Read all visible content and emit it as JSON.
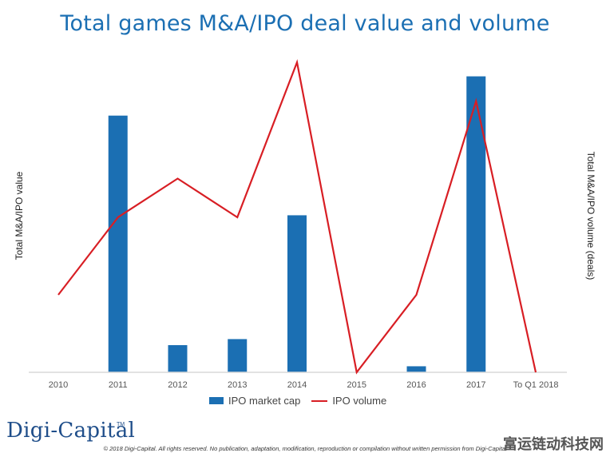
{
  "chart_data": {
    "type": "bar",
    "title": "Total games M&A/IPO deal value and volume",
    "categories": [
      "2010",
      "2011",
      "2012",
      "2013",
      "2014",
      "2015",
      "2016",
      "2017",
      "To Q1 2018"
    ],
    "series": [
      {
        "name": "IPO market cap",
        "type": "bar",
        "axis": "left",
        "color": "#1b6fb3",
        "values": [
          0,
          85,
          9,
          11,
          52,
          0,
          2,
          98,
          0
        ]
      },
      {
        "name": "IPO volume",
        "type": "line",
        "axis": "right",
        "color": "#d81e24",
        "values": [
          1,
          2,
          2.5,
          2,
          4,
          0,
          1,
          3.5,
          0
        ]
      }
    ],
    "ylabel": "Total M&A/IPO value",
    "y2label": "Total M&A/IPO volume (deals)",
    "ylim": [
      0,
      100
    ],
    "y2lim": [
      0,
      4
    ],
    "grid": false,
    "legend_position": "bottom"
  },
  "footer": {
    "brand": "Digi-Capital",
    "brand_tm": "TM",
    "copyright": "© 2018 Digi-Capital. All rights reserved. No publication, adaptation, modification, reproduction or compilation without written permission from Digi-Capital",
    "watermark": "富运链动科技网"
  }
}
